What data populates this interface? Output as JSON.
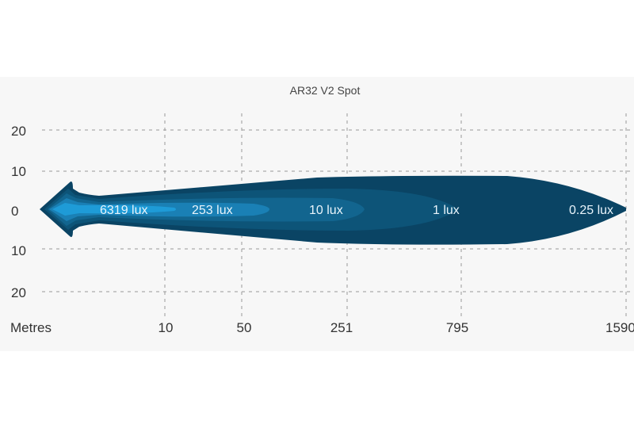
{
  "chart_data": {
    "type": "area",
    "title": "AR32 V2 Spot",
    "xlabel": "Metres",
    "x_ticks": [
      "10",
      "50",
      "251",
      "795",
      "1590"
    ],
    "y_ticks": [
      "20",
      "10",
      "0",
      "10",
      "20"
    ],
    "grid": true,
    "isolux": [
      {
        "label": "6319 lux",
        "color": "#1e9bd7"
      },
      {
        "label": "253 lux",
        "color": "#1a80b5"
      },
      {
        "label": "10 lux",
        "color": "#12658f"
      },
      {
        "label": "1 lux",
        "color": "#0d5478"
      },
      {
        "label": "0.25 lux",
        "color": "#0a4464"
      }
    ]
  }
}
